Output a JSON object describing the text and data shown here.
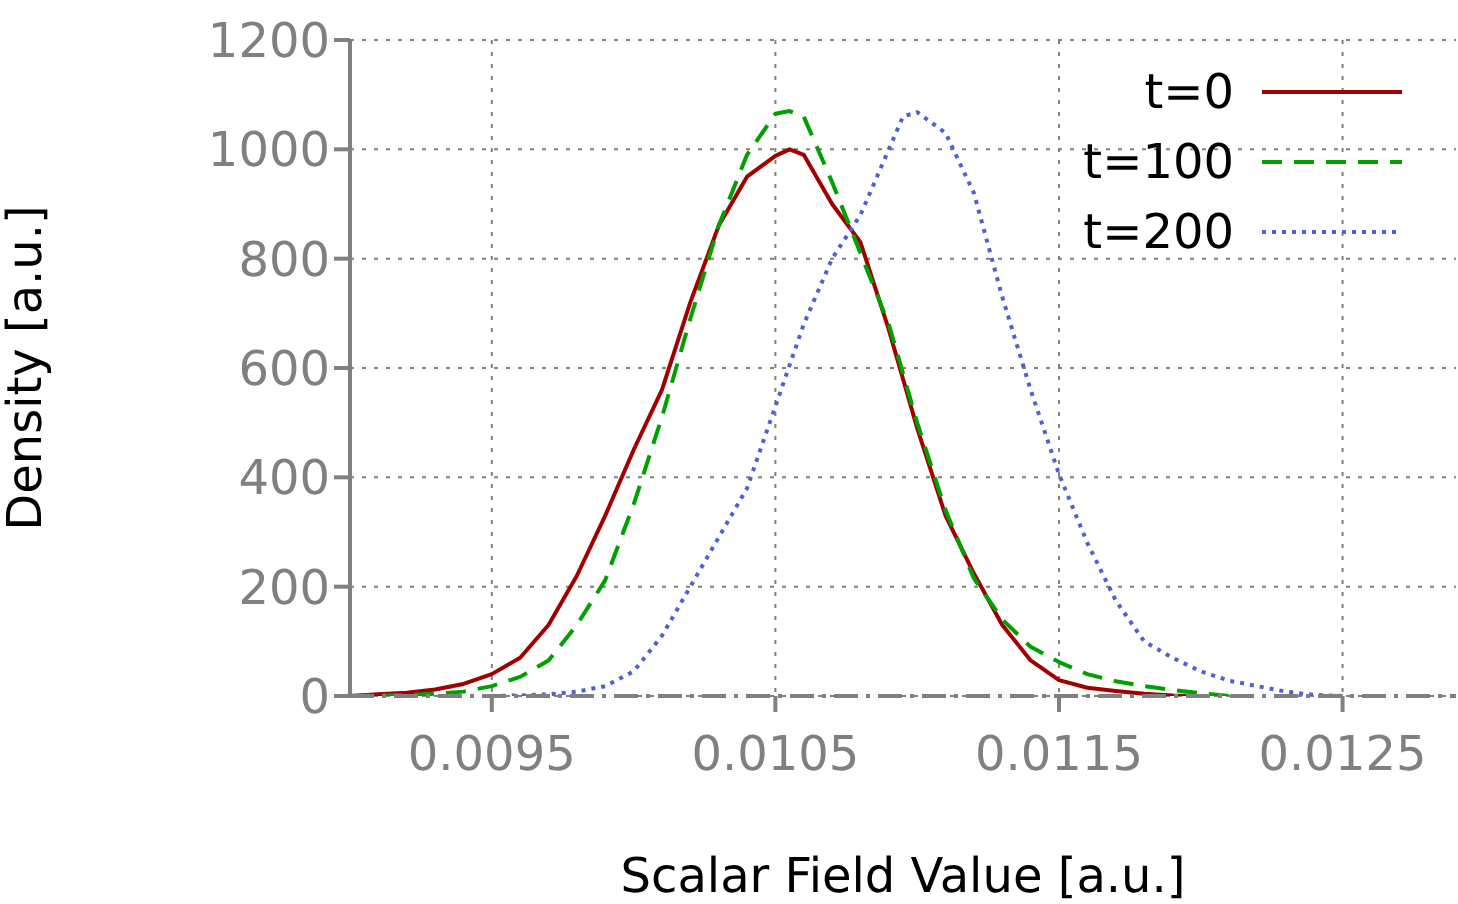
{
  "chart_data": {
    "type": "line",
    "xlabel": "Scalar Field Value [a.u.]",
    "ylabel": "Density [a.u.]",
    "xlim": [
      0.009,
      0.0129
    ],
    "xticks": [
      0.0095,
      0.0105,
      0.0115,
      0.0125
    ],
    "ylim": [
      0,
      1200
    ],
    "yticks": [
      0,
      200,
      400,
      600,
      800,
      1000,
      1200
    ],
    "grid": true,
    "legend": "top right",
    "marker": "none",
    "series": [
      {
        "name": "t=0",
        "color": "#a00000",
        "line_style": "solid",
        "x": [
          0.009,
          0.0091,
          0.0092,
          0.0093,
          0.0094,
          0.0095,
          0.0096,
          0.0097,
          0.0098,
          0.0099,
          0.01,
          0.0101,
          0.0102,
          0.0103,
          0.0104,
          0.0105,
          0.01055,
          0.0106,
          0.0107,
          0.0108,
          0.0109,
          0.011,
          0.0111,
          0.0112,
          0.0113,
          0.0114,
          0.0115,
          0.0116,
          0.0117,
          0.0118,
          0.0119,
          0.012
        ],
        "values": [
          0,
          3,
          6,
          12,
          22,
          40,
          70,
          130,
          220,
          330,
          450,
          560,
          720,
          860,
          950,
          988,
          1000,
          990,
          900,
          830,
          670,
          490,
          330,
          224,
          130,
          65,
          29,
          15,
          9,
          4,
          1,
          0
        ]
      },
      {
        "name": "t=100",
        "color": "#00a000",
        "line_style": "dashed",
        "x": [
          0.009,
          0.0091,
          0.0092,
          0.0093,
          0.0094,
          0.0095,
          0.0096,
          0.0097,
          0.0098,
          0.0099,
          0.01,
          0.0101,
          0.0102,
          0.0103,
          0.0104,
          0.0105,
          0.01055,
          0.0106,
          0.0107,
          0.0108,
          0.0109,
          0.011,
          0.0111,
          0.0112,
          0.0113,
          0.0114,
          0.0115,
          0.0116,
          0.0117,
          0.0118,
          0.0119,
          0.012,
          0.0121
        ],
        "values": [
          0,
          1,
          2,
          4,
          8,
          18,
          35,
          65,
          130,
          212,
          350,
          510,
          690,
          860,
          990,
          1065,
          1070,
          1060,
          940,
          810,
          680,
          500,
          340,
          215,
          140,
          90,
          62,
          40,
          27,
          18,
          11,
          5,
          0
        ]
      },
      {
        "name": "t=200",
        "color": "#5060d0",
        "line_style": "dotted",
        "x": [
          0.0095,
          0.0096,
          0.0097,
          0.0098,
          0.0099,
          0.01,
          0.0101,
          0.0102,
          0.0103,
          0.0104,
          0.0105,
          0.0106,
          0.0107,
          0.0108,
          0.0109,
          0.01095,
          0.011,
          0.0111,
          0.0112,
          0.0113,
          0.0114,
          0.0115,
          0.0116,
          0.0117,
          0.0118,
          0.0119,
          0.012,
          0.0121,
          0.0122,
          0.0123,
          0.0124,
          0.0125
        ],
        "values": [
          0,
          1,
          3,
          8,
          18,
          45,
          110,
          200,
          290,
          380,
          530,
          680,
          800,
          880,
          1000,
          1060,
          1068,
          1030,
          920,
          730,
          560,
          406,
          280,
          175,
          100,
          70,
          45,
          28,
          18,
          8,
          2,
          0
        ]
      }
    ]
  }
}
